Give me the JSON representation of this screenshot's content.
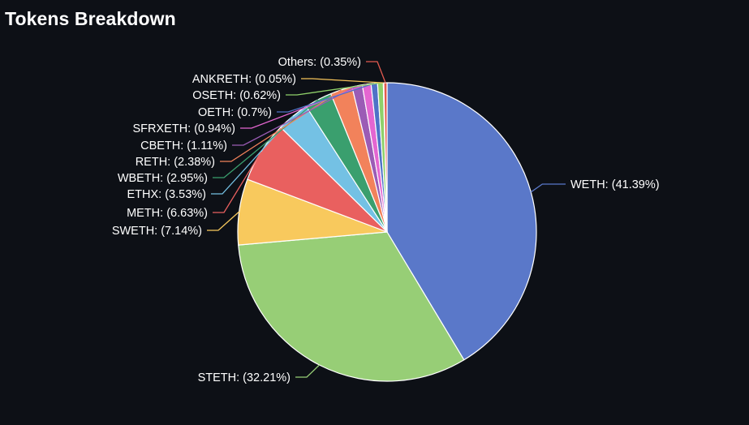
{
  "chart_data": {
    "type": "pie",
    "title": "Tokens Breakdown",
    "slices": [
      {
        "name": "WETH",
        "value": 41.39,
        "label": "WETH: (41.39%)",
        "color": "#5a78c9"
      },
      {
        "name": "STETH",
        "value": 32.21,
        "label": "STETH: (32.21%)",
        "color": "#97ce76"
      },
      {
        "name": "SWETH",
        "value": 7.14,
        "label": "SWETH: (7.14%)",
        "color": "#f8c95d"
      },
      {
        "name": "METH",
        "value": 6.63,
        "label": "METH: (6.63%)",
        "color": "#e9605f"
      },
      {
        "name": "ETHX",
        "value": 3.53,
        "label": "ETHX: (3.53%)",
        "color": "#74c1e4"
      },
      {
        "name": "WBETH",
        "value": 2.95,
        "label": "WBETH: (2.95%)",
        "color": "#3a9f6e"
      },
      {
        "name": "RETH",
        "value": 2.38,
        "label": "RETH: (2.38%)",
        "color": "#f2825b"
      },
      {
        "name": "CBETH",
        "value": 1.11,
        "label": "CBETH: (1.11%)",
        "color": "#9b5cb5"
      },
      {
        "name": "SFRXETH",
        "value": 0.94,
        "label": "SFRXETH: (0.94%)",
        "color": "#e466d1"
      },
      {
        "name": "OETH",
        "value": 0.7,
        "label": "OETH: (0.7%)",
        "color": "#4f72c7"
      },
      {
        "name": "OSETH",
        "value": 0.62,
        "label": "OSETH: (0.62%)",
        "color": "#8fd06a"
      },
      {
        "name": "ANKRETH",
        "value": 0.05,
        "label": "ANKRETH: (0.05%)",
        "color": "#f6c45a"
      },
      {
        "name": "Others",
        "value": 0.35,
        "label": "Others: (0.35%)",
        "color": "#e45a4f"
      }
    ],
    "legend": "none"
  }
}
